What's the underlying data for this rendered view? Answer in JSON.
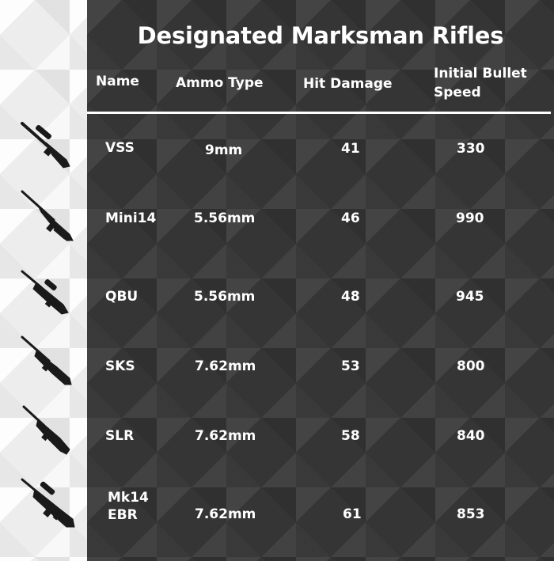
{
  "title": "Designated Marksman Rifles",
  "headers": {
    "name": "Name",
    "ammo": "Ammo Type",
    "damage": "Hit Damage",
    "speed_line1": "Initial Bullet",
    "speed_line2": "Speed"
  },
  "rows": [
    {
      "name": "VSS",
      "ammo": "9mm",
      "damage": "41",
      "speed": "330",
      "icon": "vss-rifle-icon"
    },
    {
      "name": "Mini14",
      "ammo": "5.56mm",
      "damage": "46",
      "speed": "990",
      "icon": "mini14-rifle-icon"
    },
    {
      "name": "QBU",
      "ammo": "5.56mm",
      "damage": "48",
      "speed": "945",
      "icon": "qbu-rifle-icon"
    },
    {
      "name": "SKS",
      "ammo": "7.62mm",
      "damage": "53",
      "speed": "800",
      "icon": "sks-rifle-icon"
    },
    {
      "name": "SLR",
      "ammo": "7.62mm",
      "damage": "58",
      "speed": "840",
      "icon": "slr-rifle-icon"
    },
    {
      "name_line1": "Mk14",
      "name_line2": "EBR",
      "ammo": "7.62mm",
      "damage": "61",
      "speed": "853",
      "icon": "mk14-ebr-rifle-icon"
    }
  ],
  "colors": {
    "panel": "#3d3d3d",
    "text": "#ffffff",
    "strip": "#f2f2f2"
  }
}
